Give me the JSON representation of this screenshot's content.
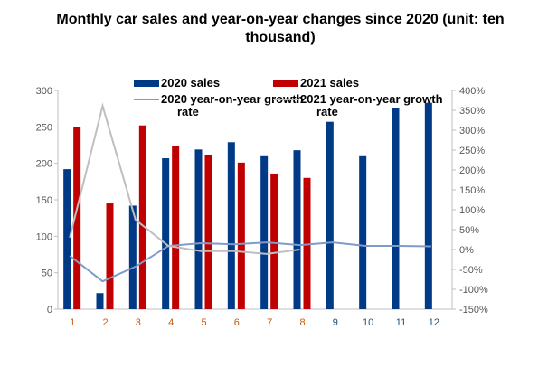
{
  "chart_data": {
    "type": "bar+line",
    "title": "Monthly car sales and year-on-year changes since 2020 (unit: ten thousand)",
    "categories": [
      "1",
      "2",
      "3",
      "4",
      "5",
      "6",
      "7",
      "8",
      "9",
      "10",
      "11",
      "12"
    ],
    "left_axis": {
      "ylim": [
        0,
        300
      ],
      "ticks": [
        "0",
        "50",
        "100",
        "150",
        "200",
        "250",
        "300"
      ]
    },
    "right_axis": {
      "ylim": [
        -150,
        400
      ],
      "ticks": [
        "-150%",
        "-100%",
        "-50%",
        "0%",
        "50%",
        "100%",
        "150%",
        "200%",
        "250%",
        "300%",
        "350%",
        "400%"
      ]
    },
    "legend_placement": "top",
    "grid": false,
    "series": [
      {
        "name": "2020 sales",
        "type": "bar",
        "axis": "left",
        "color": "#003A86",
        "values": [
          192,
          22,
          142,
          207,
          219,
          229,
          211,
          218,
          257,
          211,
          276,
          283
        ]
      },
      {
        "name": "2021 sales",
        "type": "bar",
        "axis": "left",
        "color": "#C00000",
        "values": [
          250,
          145,
          252,
          224,
          212,
          201,
          186,
          180,
          null,
          null,
          null,
          null
        ]
      },
      {
        "name": "2020 year-on-year growth rate",
        "type": "line",
        "axis": "right",
        "color": "#7F9CC8",
        "values": [
          -16,
          -80,
          -43,
          9,
          16,
          13,
          18,
          11,
          18,
          9,
          9,
          8
        ]
      },
      {
        "name": "2021 year-on-year growth rate",
        "type": "line",
        "axis": "right",
        "color": "#BFBFBF",
        "values": [
          30,
          361,
          75,
          9,
          -4,
          -4,
          -11,
          0,
          null,
          null,
          null,
          null
        ]
      }
    ]
  }
}
